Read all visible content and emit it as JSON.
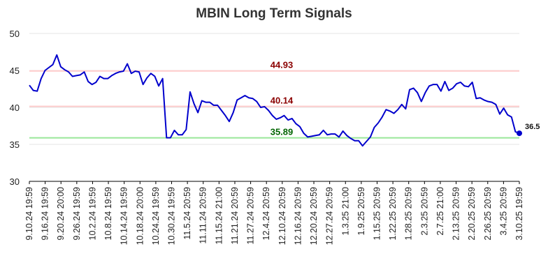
{
  "chart_data": {
    "type": "line",
    "title": "MBIN Long Term Signals",
    "xlabel": "",
    "ylabel": "",
    "ylim": [
      30,
      50
    ],
    "yticks": [
      "30",
      "35",
      "40",
      "45",
      "50"
    ],
    "grid": "horizontal",
    "line_color": "#0000cc",
    "x_tick_labels": [
      "9.10.24 19:59",
      "9.16.24 19:59",
      "9.20.24 20:00",
      "9.26.24 19:59",
      "10.2.24 19:59",
      "10.8.24 19:59",
      "10.14.24 19:59",
      "10.18.24 20:00",
      "10.24.24 19:59",
      "10.30.24 19:59",
      "11.5.24 20:59",
      "11.11.24 20:59",
      "11.15.24 21:00",
      "11.21.24 20:59",
      "11.27.24 20:59",
      "12.4.24 20:59",
      "12.10.24 20:59",
      "12.16.24 20:59",
      "12.20.24 20:59",
      "12.27.24 20:59",
      "1.3.25 21:00",
      "1.9.25 20:59",
      "1.15.25 20:59",
      "1.22.25 20:59",
      "1.28.25 20:59",
      "2.3.25 20:59",
      "2.7.25 21:00",
      "2.13.25 20:59",
      "2.20.25 20:59",
      "2.26.25 20:59",
      "3.4.25 20:59",
      "3.10.25 19:59"
    ],
    "levels": [
      {
        "value": 44.93,
        "label": "44.93",
        "line_color": "#ffcccc",
        "text_color": "#8b0000"
      },
      {
        "value": 40.14,
        "label": "40.14",
        "line_color": "#ffcccc",
        "text_color": "#8b0000"
      },
      {
        "value": 35.89,
        "label": "35.89",
        "line_color": "#99e699",
        "text_color": "#006400"
      }
    ],
    "last_value": {
      "value": 36.5,
      "label": "36.5",
      "color": "#0000cc"
    },
    "values": [
      43.0,
      42.3,
      42.2,
      43.9,
      45.0,
      45.4,
      45.8,
      47.1,
      45.5,
      45.1,
      44.8,
      44.2,
      44.3,
      44.4,
      44.8,
      43.5,
      43.1,
      43.4,
      44.2,
      43.9,
      43.9,
      44.3,
      44.6,
      44.8,
      44.9,
      45.9,
      44.6,
      44.9,
      44.8,
      43.1,
      44.0,
      44.6,
      44.2,
      42.9,
      43.9,
      35.9,
      35.9,
      36.9,
      36.3,
      36.3,
      37.0,
      42.1,
      40.5,
      39.3,
      40.9,
      40.7,
      40.7,
      40.3,
      40.3,
      39.6,
      38.9,
      38.1,
      39.3,
      41.0,
      41.3,
      41.6,
      41.3,
      41.2,
      40.8,
      40.0,
      40.1,
      39.6,
      38.9,
      38.4,
      38.6,
      38.9,
      38.3,
      38.5,
      37.8,
      37.4,
      36.5,
      36.0,
      36.1,
      36.2,
      36.3,
      36.9,
      36.3,
      36.4,
      36.4,
      36.0,
      36.8,
      36.2,
      35.8,
      35.5,
      35.5,
      34.8,
      35.4,
      36.0,
      37.3,
      37.9,
      38.7,
      39.7,
      39.5,
      39.2,
      39.7,
      40.4,
      39.8,
      42.4,
      42.6,
      42.0,
      40.8,
      42.0,
      42.9,
      43.1,
      43.1,
      42.2,
      43.5,
      42.3,
      42.6,
      43.2,
      43.4,
      42.9,
      42.8,
      43.4,
      41.2,
      41.3,
      41.0,
      40.8,
      40.7,
      40.4,
      39.1,
      39.9,
      39.0,
      38.7,
      36.7,
      36.5
    ]
  }
}
